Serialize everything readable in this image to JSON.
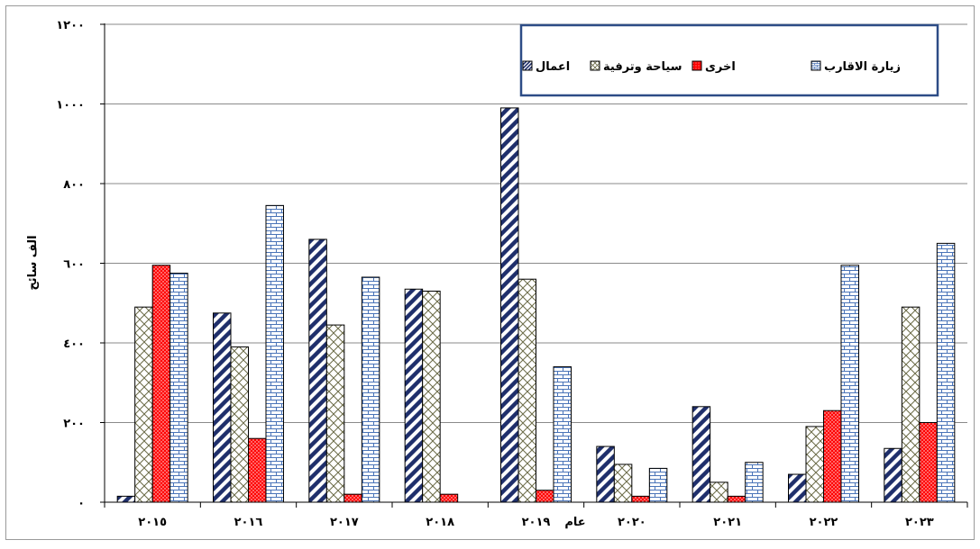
{
  "chart_data": {
    "type": "bar",
    "categories": [
      "٢٠١٥",
      "٢٠١٦",
      "٢٠١٧",
      "٢٠١٨",
      "٢٠١٩",
      "٢٠٢٠",
      "٢٠٢١",
      "٢٠٢٢",
      "٢٠٢٣"
    ],
    "series": [
      {
        "name": "اعمال",
        "pattern": "diagonal-stripes",
        "color": "#1f2f6b",
        "values": [
          15,
          475,
          660,
          535,
          990,
          140,
          240,
          70,
          135
        ]
      },
      {
        "name": "سياحة وترفية",
        "pattern": "crosshatch",
        "color": "#6b6b47",
        "values": [
          490,
          390,
          445,
          530,
          560,
          95,
          50,
          190,
          490
        ]
      },
      {
        "name": "اخرى",
        "pattern": "dots",
        "color": "#ff0000",
        "values": [
          595,
          160,
          20,
          20,
          30,
          15,
          15,
          230,
          200
        ]
      },
      {
        "name": "زيارة الاقارب",
        "pattern": "bricks",
        "color": "#4a74b8",
        "values": [
          575,
          745,
          565,
          -1,
          340,
          85,
          100,
          595,
          650
        ]
      }
    ],
    "ylabel": "الف سائح",
    "xlabel": "عام",
    "y_ticks": [
      "٠",
      "٢٠٠",
      "٤٠٠",
      "٦٠٠",
      "٨٠٠",
      "١٠٠٠",
      "١٢٠٠"
    ],
    "ylim": [
      0,
      1200
    ],
    "grid": true,
    "legend_position": "top-right"
  }
}
